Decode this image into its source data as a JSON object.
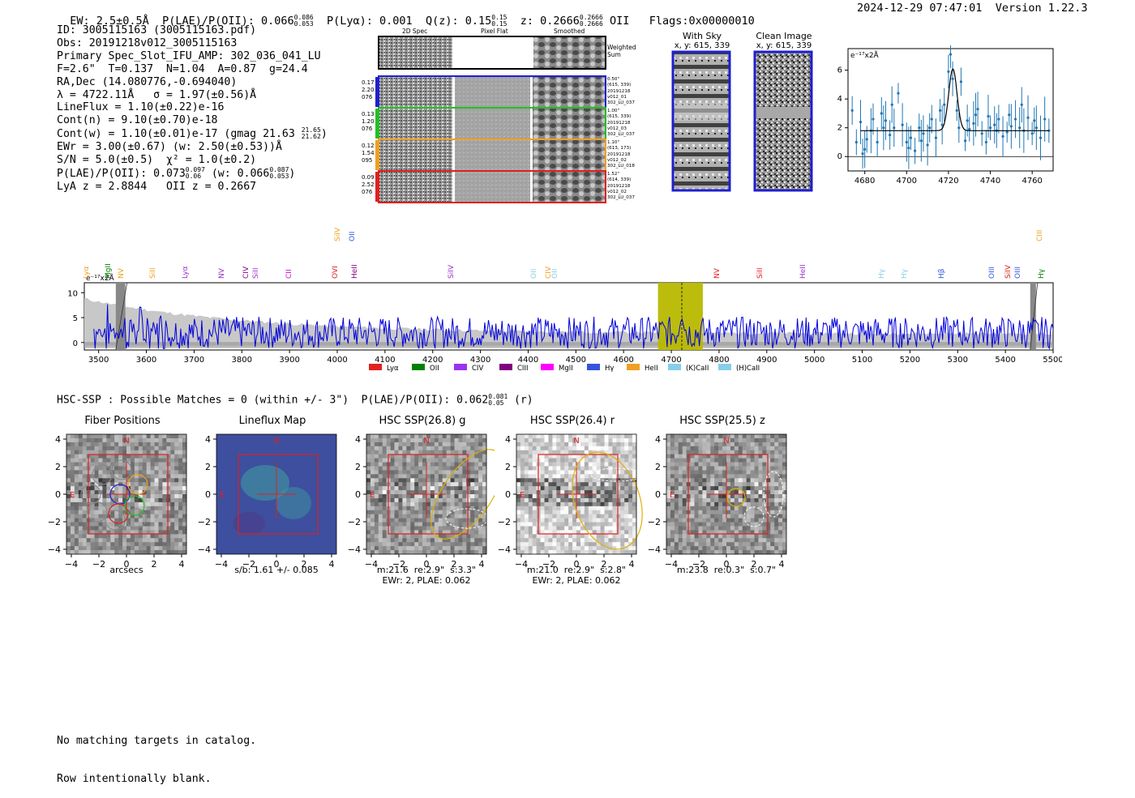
{
  "header": {
    "ew": "EW: 2.5±0.5Å",
    "plae_label": "P(LAE)/P(OII): 0.066",
    "plae_hi": "0.086",
    "plae_lo": "0.053",
    "plya": "P(Lyα): 0.001",
    "q_label": "Q(z): 0.15",
    "q_hi": "0.15",
    "q_lo": "0.15",
    "z_label": "z: 0.2666",
    "z_hi": "0.2666",
    "z_lo": "0.2666",
    "z_line": "OII",
    "flags": "Flags:0x00000010",
    "timestamp": "2024-12-29 07:47:01",
    "version": "Version 1.22.3"
  },
  "info": {
    "id": "ID: 3005115163 (3005115163.pdf)",
    "obs": "Obs: 20191218v012_3005115163",
    "primary": "Primary Spec_Slot_IFU_AMP: 302_036_041_LU",
    "params": "F=2.6\"  T=0.137  N=1.04  A=0.87  g=24.4",
    "radec": "RA,Dec (14.080776,-0.694040)",
    "lambda": "λ = 4722.11Å   σ = 1.97(±0.56)Å",
    "lineflux": "LineFlux = 1.10(±0.22)e-16",
    "contn": "Cont(n) = 9.10(±0.70)e-18",
    "contw": "Cont(w) = 1.10(±0.01)e-17 (gmag 21.63",
    "contw_hi": "21.65",
    "contw_lo": "21.62",
    "ewr": "EWr = 3.00(±0.67) (w: 2.50(±0.53))Å",
    "sn": "S/N = 5.0(±0.5)  χ² = 1.0(±0.2)",
    "plae": "P(LAE)/P(OII): 0.073",
    "plae_hi": "0.097",
    "plae_lo": "0.06",
    "plae_w": "(w: 0.066",
    "plae_w_hi": "0.087",
    "plae_w_lo": "0.053",
    "lya_z": "LyA z = 2.8844   OII z = 0.2667"
  },
  "cutouts": {
    "col_titles": [
      "2D Spec",
      "Pixel Flat",
      "Smoothed"
    ],
    "weighted_sum": [
      "Weighted",
      "Sum"
    ],
    "rows": [
      {
        "left": [
          "0.17",
          "2.20",
          "076"
        ],
        "right": [
          "0.50\"",
          "(615, 339)",
          "20191218",
          "v012_01",
          "302_LU_037"
        ],
        "color": "#1f1fd0"
      },
      {
        "left": [
          "0.13",
          "1.20",
          "076"
        ],
        "right": [
          "1.00\"",
          "(615, 339)",
          "20191218",
          "v012_03",
          "302_LU_037"
        ],
        "color": "#22c022"
      },
      {
        "left": [
          "0.12",
          "1.54",
          "095"
        ],
        "right": [
          "1.10\"",
          "(613, 173)",
          "20191218",
          "v012_02",
          "302_LU_018"
        ],
        "color": "#f0a020"
      },
      {
        "left": [
          "0.09",
          "2.52",
          "076"
        ],
        "right": [
          "1.52\"",
          "(614, 339)",
          "20191218",
          "v012_02",
          "302_LU_037"
        ],
        "color": "#e02020"
      }
    ]
  },
  "sky_panels": {
    "with_sky": "With Sky",
    "with_sky_xy": "x, y: 615, 339",
    "clean": "Clean Image",
    "clean_xy": "x, y: 615, 339"
  },
  "zoom_chart": {
    "unit": "e⁻¹⁷x2Å",
    "x_ticks": [
      "4680",
      "4700",
      "4720",
      "4740",
      "4760"
    ],
    "y_ticks": [
      "0",
      "2",
      "4",
      "6"
    ]
  },
  "spectrum": {
    "unit": "e⁻¹⁷x2Å",
    "x_ticks": [
      "3500",
      "3600",
      "3700",
      "3800",
      "3900",
      "4000",
      "4100",
      "4200",
      "4300",
      "4400",
      "4500",
      "4600",
      "4700",
      "4800",
      "4900",
      "5000",
      "5100",
      "5200",
      "5300",
      "5400",
      "5500"
    ],
    "y_ticks": [
      "0",
      "5",
      "10"
    ],
    "lines": [
      {
        "label": "Lyα",
        "color": "#f0a020",
        "tier": 0
      },
      {
        "label": "MgII",
        "color": "#008000",
        "tier": 0
      },
      {
        "label": "NV",
        "color": "#f0a020",
        "tier": 0
      },
      {
        "label": "SiII",
        "color": "#f0a020",
        "tier": 0
      },
      {
        "label": "Lyα",
        "color": "#9933cc",
        "tier": 0
      },
      {
        "label": "NV",
        "color": "#9933cc",
        "tier": 0
      },
      {
        "label": "CIV",
        "color": "#800080",
        "tier": 0
      },
      {
        "label": "SiII",
        "color": "#9933cc",
        "tier": 0
      },
      {
        "label": "CII",
        "color": "#cc00cc",
        "tier": 0
      },
      {
        "label": "SiIV",
        "color": "#f0a020",
        "tier": 1
      },
      {
        "label": "OII",
        "color": "#3355dd",
        "tier": 1
      },
      {
        "label": "OVI",
        "color": "#e02020",
        "tier": 0
      },
      {
        "label": "HeII",
        "color": "#800080",
        "tier": 0
      },
      {
        "label": "SiIV",
        "color": "#9933cc",
        "tier": 0
      },
      {
        "label": "OII",
        "color": "#87ceeb",
        "tier": 0
      },
      {
        "label": "CIV",
        "color": "#f0a020",
        "tier": 0
      },
      {
        "label": "OII",
        "color": "#87ceeb",
        "tier": 0
      },
      {
        "label": "NV",
        "color": "#e02020",
        "tier": 0
      },
      {
        "label": "SiII",
        "color": "#e02020",
        "tier": 0
      },
      {
        "label": "HeII",
        "color": "#9933cc",
        "tier": 0
      },
      {
        "label": "Hγ",
        "color": "#87ceeb",
        "tier": 0
      },
      {
        "label": "Hγ",
        "color": "#87ceeb",
        "tier": 0
      },
      {
        "label": "Hβ",
        "color": "#3355dd",
        "tier": 0
      },
      {
        "label": "OIII",
        "color": "#3355dd",
        "tier": 0
      },
      {
        "label": "SiIV",
        "color": "#e02020",
        "tier": 0
      },
      {
        "label": "OIII",
        "color": "#3355dd",
        "tier": 0
      },
      {
        "label": "CIII",
        "color": "#f0a020",
        "tier": 1
      },
      {
        "label": "Hγ",
        "color": "#008000",
        "tier": 0
      }
    ],
    "legend": [
      {
        "label": "Lyα",
        "color": "#e02020"
      },
      {
        "label": "OII",
        "color": "#008000"
      },
      {
        "label": "CIV",
        "color": "#9933ee"
      },
      {
        "label": "CIII",
        "color": "#800080"
      },
      {
        "label": "MgII",
        "color": "#ff00ff"
      },
      {
        "label": "Hγ",
        "color": "#3355dd"
      },
      {
        "label": "HeII",
        "color": "#f0a020"
      },
      {
        "label": "(K)CaII",
        "color": "#87ceeb"
      },
      {
        "label": "(H)CaII",
        "color": "#87ceeb"
      }
    ]
  },
  "hsc": {
    "summary": "HSC-SSP : Possible Matches = 0 (within +/- 3\")  P(LAE)/P(OII): 0.062",
    "summary_hi": "0.081",
    "summary_lo": "0.05",
    "summary_band": "(r)",
    "panels": [
      {
        "title": "Fiber Positions",
        "caption": [
          "arcsecs"
        ]
      },
      {
        "title": "Lineflux Map",
        "caption": [
          "s/b: 1.61 +/- 0.085"
        ]
      },
      {
        "title": "HSC SSP(26.8) g",
        "caption": [
          "m:21.6  re:2.9\"  s:3.3\"",
          "EWr: 2, PLAE: 0.062"
        ]
      },
      {
        "title": "HSC SSP(26.4) r",
        "caption": [
          "m:21.0  re:2.9\"  s:2.8\"",
          "EWr: 2, PLAE: 0.062"
        ]
      },
      {
        "title": "HSC SSP(25.5) z",
        "caption": [
          "m:23.8  re:0.3\"  s:0.7\""
        ]
      }
    ],
    "axis_ticks": [
      "4",
      "2",
      "0",
      "−2",
      "−4"
    ],
    "x_ticks": [
      "−4",
      "−2",
      "0",
      "2",
      "4"
    ],
    "compass_n": "N",
    "compass_e": "E"
  },
  "footer": {
    "line1": "No matching targets in catalog.",
    "line2": "Row intentionally blank."
  },
  "chart_data": [
    {
      "type": "scatter",
      "title": "",
      "xlabel": "",
      "ylabel": "e⁻¹⁷x2Å",
      "xlim": [
        4672,
        4770
      ],
      "ylim": [
        -1,
        7.5
      ],
      "x": [
        4674,
        4676,
        4678,
        4679,
        4680,
        4681,
        4683,
        4684,
        4686,
        4688,
        4689,
        4690,
        4692,
        4693,
        4694,
        4696,
        4698,
        4700,
        4701,
        4702,
        4704,
        4706,
        4707,
        4708,
        4710,
        4711,
        4712,
        4714,
        4716,
        4717,
        4718,
        4720,
        4721,
        4722,
        4724,
        4725,
        4726,
        4728,
        4729,
        4730,
        4732,
        4733,
        4734,
        4736,
        4738,
        4739,
        4740,
        4742,
        4743,
        4744,
        4746,
        4748,
        4749,
        4750,
        4752,
        4754,
        4755,
        4756,
        4758,
        4760,
        4761,
        4762,
        4764,
        4766,
        4768
      ],
      "y": [
        3.2,
        1.0,
        2.4,
        0.2,
        0.5,
        1.2,
        1.8,
        2.6,
        1.0,
        3.0,
        2.0,
        2.5,
        1.5,
        3.6,
        2.0,
        4.4,
        2.2,
        1.0,
        0.6,
        1.3,
        0.4,
        2.0,
        1.1,
        1.6,
        0.8,
        2.0,
        2.6,
        1.3,
        3.2,
        2.2,
        3.6,
        5.9,
        7.1,
        5.4,
        3.2,
        2.0,
        5.2,
        1.1,
        2.5,
        1.9,
        2.3,
        2.9,
        3.3,
        1.6,
        1.0,
        2.8,
        2.0,
        2.2,
        1.8,
        2.6,
        1.4,
        1.7,
        2.9,
        2.1,
        2.6,
        2.0,
        3.6,
        1.8,
        2.7,
        1.6,
        2.5,
        2.0,
        1.3,
        2.6,
        1.8
      ],
      "fit": {
        "continuum": 1.8,
        "peak_x": 4722.1,
        "amplitude": 4.3,
        "sigma": 1.97
      }
    },
    {
      "type": "line",
      "title": "",
      "xlabel": "",
      "ylabel": "e⁻¹⁷x2Å",
      "xlim": [
        3470,
        5500
      ],
      "ylim": [
        -1.5,
        12
      ],
      "highlight_band": [
        4672,
        4766
      ],
      "marker_x": 4722,
      "masked_bands": [
        [
          3536,
          3556
        ],
        [
          5452,
          5464
        ]
      ],
      "series": [
        {
          "name": "flux",
          "seed": 7,
          "level": 2.0,
          "noise": 1.6
        }
      ],
      "error_band": {
        "start": 7,
        "end": 1.5
      }
    }
  ]
}
